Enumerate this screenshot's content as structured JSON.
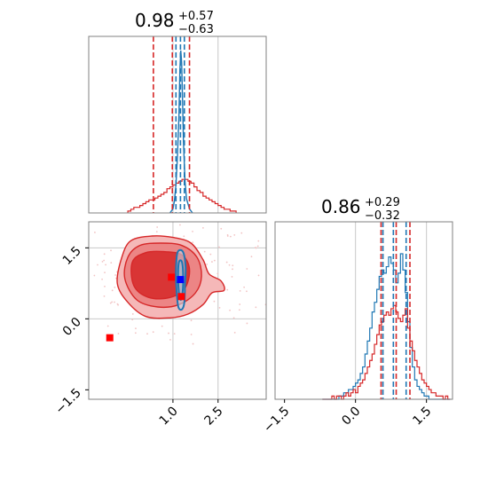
{
  "chart_data": {
    "type": "corner",
    "colors": {
      "red": "#d62728",
      "blue": "#1f77b4",
      "red_fill_outer": "#f5b8b8",
      "red_fill_mid": "#ec8585",
      "red_fill_inner": "#d93535",
      "marker_red": "#ff0000",
      "marker_blue": "#0000ff",
      "grid": "#c8c8c8",
      "frame": "#808080"
    },
    "param1": {
      "title_main": "0.98",
      "title_plus": "+0.57",
      "title_minus": "−0.63",
      "range": [
        -1.8,
        4.1
      ],
      "gridlines": [
        1.0,
        2.5
      ],
      "tick_values": [
        1.0,
        2.5
      ],
      "tick_labels": [
        "1.0",
        "2.5"
      ],
      "red_quantiles": [
        0.35,
        0.98,
        1.55
      ],
      "blue_quantiles": [
        1.1,
        1.25,
        1.38
      ]
    },
    "param2": {
      "title_main": "0.86",
      "title_plus": "+0.29",
      "title_minus": "−0.32",
      "range": [
        -1.7,
        2.05
      ],
      "gridlines": [
        0.0,
        1.5
      ],
      "tick_values": [
        -1.5,
        0.0,
        1.5
      ],
      "tick_labels": [
        "−1.5",
        "0.0",
        "1.5"
      ],
      "red_quantiles": [
        0.54,
        0.86,
        1.15
      ],
      "blue_quantiles": [
        0.58,
        0.8,
        1.07
      ]
    },
    "hist1_red": {
      "bin_start": -0.5,
      "bin_width": 0.1,
      "values": [
        1,
        2,
        3,
        3,
        4,
        5,
        6,
        7,
        7,
        8,
        9,
        10,
        11,
        13,
        14,
        15,
        16,
        17,
        18,
        18,
        17,
        16,
        14,
        12,
        11,
        9,
        8,
        7,
        6,
        5,
        4,
        3,
        2,
        2,
        1,
        1
      ]
    },
    "hist1_blue": {
      "x": [
        0.9,
        1.0,
        1.05,
        1.1,
        1.15,
        1.2,
        1.23,
        1.26,
        1.29,
        1.32,
        1.35,
        1.4,
        1.45,
        1.55,
        1.65
      ],
      "y": [
        0,
        2,
        6,
        14,
        28,
        48,
        70,
        80,
        74,
        55,
        35,
        16,
        7,
        2,
        0
      ]
    },
    "hist2_red": {
      "bin_start": -0.7,
      "bin_width": 0.05,
      "values": [
        0,
        0,
        0,
        0,
        1,
        0,
        1,
        1,
        0,
        1,
        2,
        1,
        2,
        3,
        2,
        4,
        5,
        6,
        8,
        10,
        12,
        14,
        17,
        20,
        23,
        24,
        26,
        27,
        26,
        28,
        29,
        27,
        25,
        24,
        26,
        28,
        22,
        18,
        15,
        12,
        10,
        8,
        6,
        5,
        4,
        3,
        2,
        2,
        1,
        1,
        1,
        0,
        1,
        0
      ]
    },
    "hist2_blue": {
      "bin_start": -0.7,
      "bin_width": 0.05,
      "values": [
        0,
        0,
        0,
        0,
        0,
        0,
        0,
        1,
        1,
        2,
        2,
        3,
        3,
        4,
        5,
        6,
        8,
        10,
        14,
        18,
        22,
        27,
        30,
        34,
        38,
        40,
        39,
        41,
        44,
        42,
        40,
        36,
        39,
        45,
        40,
        33,
        24,
        16,
        10,
        6,
        4,
        3,
        2,
        1,
        1,
        0,
        0,
        0,
        0,
        0,
        0,
        0,
        0,
        0
      ]
    },
    "contours_red": [
      {
        "level": "outer",
        "points": [
          [
            -0.7,
            1.3
          ],
          [
            -0.4,
            1.65
          ],
          [
            0.3,
            1.75
          ],
          [
            1.0,
            1.72
          ],
          [
            1.6,
            1.6
          ],
          [
            2.0,
            1.25
          ],
          [
            2.2,
            0.95
          ],
          [
            2.6,
            0.8
          ],
          [
            2.7,
            0.6
          ],
          [
            2.3,
            0.55
          ],
          [
            2.0,
            0.3
          ],
          [
            1.5,
            0.1
          ],
          [
            0.9,
            0.02
          ],
          [
            0.1,
            0.05
          ],
          [
            -0.5,
            0.35
          ],
          [
            -0.85,
            0.75
          ]
        ]
      },
      {
        "level": "mid",
        "points": [
          [
            -0.5,
            1.3
          ],
          [
            -0.1,
            1.55
          ],
          [
            0.6,
            1.6
          ],
          [
            1.3,
            1.55
          ],
          [
            1.8,
            1.3
          ],
          [
            1.95,
            0.9
          ],
          [
            1.75,
            0.55
          ],
          [
            1.2,
            0.3
          ],
          [
            0.5,
            0.25
          ],
          [
            -0.2,
            0.4
          ],
          [
            -0.6,
            0.85
          ]
        ]
      },
      {
        "level": "inner",
        "points": [
          [
            -0.35,
            1.2
          ],
          [
            0.1,
            1.4
          ],
          [
            0.7,
            1.42
          ],
          [
            1.3,
            1.35
          ],
          [
            1.55,
            1.05
          ],
          [
            1.4,
            0.65
          ],
          [
            0.9,
            0.45
          ],
          [
            0.2,
            0.45
          ],
          [
            -0.3,
            0.7
          ]
        ]
      }
    ],
    "contours_blue": [
      {
        "level": "outer",
        "points": [
          [
            1.15,
            1.4
          ],
          [
            1.33,
            1.42
          ],
          [
            1.42,
            1.1
          ],
          [
            1.4,
            0.7
          ],
          [
            1.38,
            0.35
          ],
          [
            1.3,
            0.2
          ],
          [
            1.18,
            0.25
          ],
          [
            1.12,
            0.6
          ],
          [
            1.1,
            1.0
          ]
        ]
      },
      {
        "level": "inner",
        "points": [
          [
            1.2,
            1.2
          ],
          [
            1.3,
            1.2
          ],
          [
            1.34,
            0.9
          ],
          [
            1.32,
            0.55
          ],
          [
            1.26,
            0.4
          ],
          [
            1.2,
            0.55
          ],
          [
            1.17,
            0.9
          ]
        ]
      }
    ],
    "markers_red": [
      [
        0.95,
        0.88
      ],
      [
        1.28,
        0.47
      ],
      [
        -1.1,
        -0.4
      ]
    ],
    "markers_blue": [
      [
        1.25,
        0.83
      ]
    ]
  }
}
